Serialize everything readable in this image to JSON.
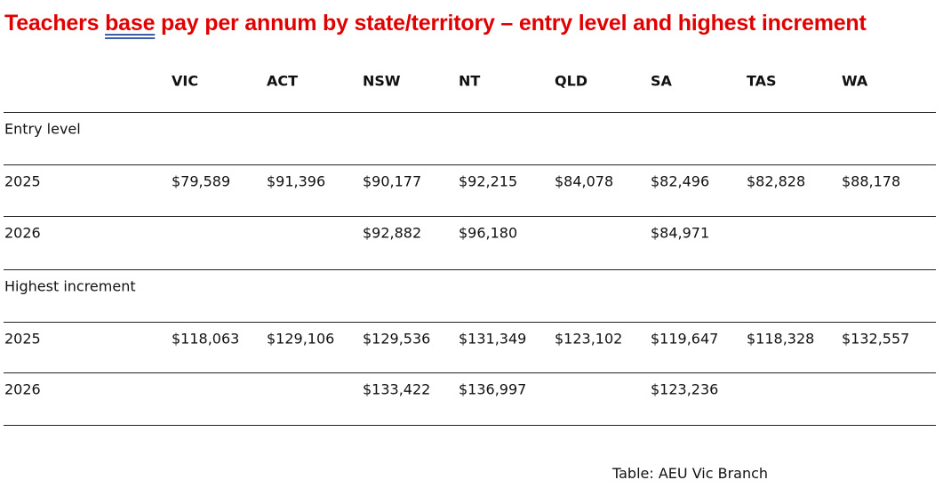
{
  "title": {
    "before": "Teachers ",
    "underlined": "base",
    "after": " pay per annum by state/territory – entry level and highest increment"
  },
  "columns": [
    "VIC",
    "ACT",
    "NSW",
    "NT",
    "QLD",
    "SA",
    "TAS",
    "WA"
  ],
  "rows": [
    {
      "label": "Entry level",
      "values": [
        "",
        "",
        "",
        "",
        "",
        "",
        "",
        ""
      ]
    },
    {
      "label": "2025",
      "values": [
        "$79,589",
        "$91,396",
        "$90,177",
        "$92,215",
        "$84,078",
        "$82,496",
        "$82,828",
        "$88,178"
      ]
    },
    {
      "label": "2026",
      "values": [
        "",
        "",
        "$92,882",
        "$96,180",
        "",
        "$84,971",
        "",
        ""
      ]
    },
    {
      "label": "Highest increment",
      "values": [
        "",
        "",
        "",
        "",
        "",
        "",
        "",
        ""
      ]
    },
    {
      "label": "2025",
      "values": [
        "$118,063",
        "$129,106",
        "$129,536",
        "$131,349",
        "$123,102",
        "$119,647",
        "$118,328",
        "$132,557"
      ]
    },
    {
      "label": "2026",
      "values": [
        "",
        "",
        "$133,422",
        "$136,997",
        "",
        "$123,236",
        "",
        ""
      ]
    }
  ],
  "caption": "Table: AEU Vic Branch",
  "colors": {
    "title": "#e00000"
  }
}
